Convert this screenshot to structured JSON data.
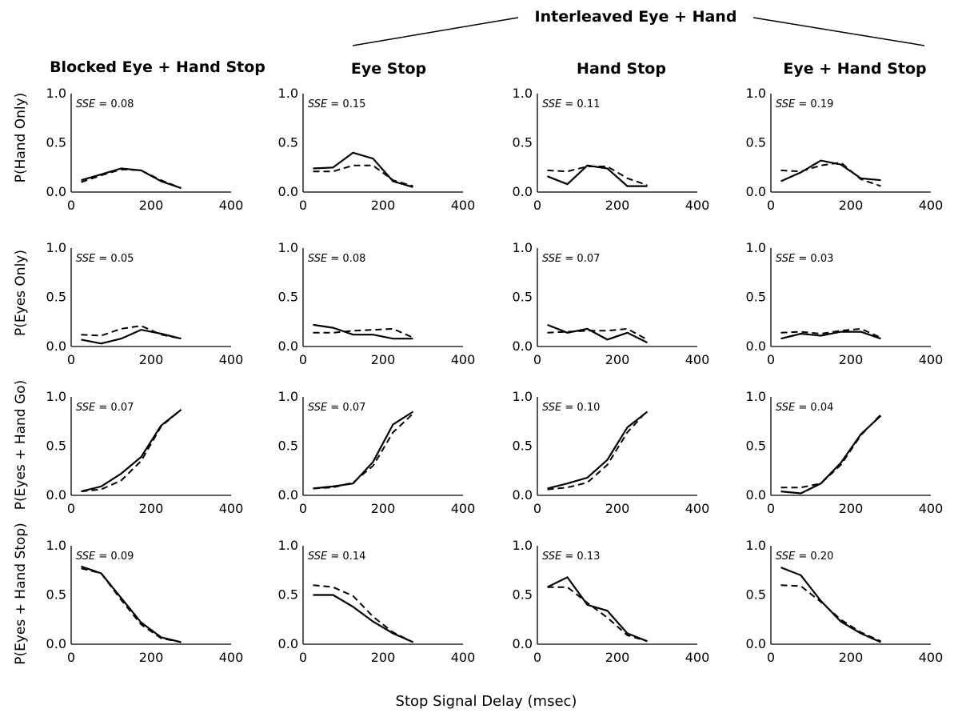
{
  "figure": {
    "group_header": "Interleaved Eye + Hand",
    "column_titles": [
      "Blocked Eye + Hand Stop",
      "Eye Stop",
      "Hand Stop",
      "Eye + Hand Stop"
    ],
    "row_labels": [
      "P(Hand Only)",
      "P(Eyes Only)",
      "P(Eyes + Hand Go)",
      "P(Eyes + Hand Stop)"
    ],
    "x_axis_label": "Stop Signal Delay (msec)"
  },
  "chart_data": {
    "type": "line",
    "layout": "4 rows x 4 columns small multiples",
    "x": [
      25,
      75,
      125,
      175,
      225,
      275
    ],
    "xlim": [
      0,
      400
    ],
    "ylim": [
      0,
      1
    ],
    "xticks": [
      "0",
      "200",
      "400"
    ],
    "yticks": [
      "0.0",
      "0.5",
      "1.0"
    ],
    "sse_prefix": "SSE",
    "series_styles": {
      "observed": "solid",
      "model": "dashed"
    },
    "panels": [
      {
        "row": 0,
        "col": 0,
        "sse": "0.08",
        "solid": [
          0.12,
          0.18,
          0.24,
          0.22,
          0.11,
          0.04
        ],
        "dashed": [
          0.1,
          0.17,
          0.23,
          0.22,
          0.12,
          0.04
        ]
      },
      {
        "row": 0,
        "col": 1,
        "sse": "0.15",
        "solid": [
          0.24,
          0.25,
          0.4,
          0.34,
          0.11,
          0.05
        ],
        "dashed": [
          0.21,
          0.21,
          0.27,
          0.27,
          0.12,
          0.06
        ]
      },
      {
        "row": 0,
        "col": 2,
        "sse": "0.11",
        "solid": [
          0.16,
          0.08,
          0.27,
          0.24,
          0.06,
          0.06
        ],
        "dashed": [
          0.22,
          0.21,
          0.26,
          0.26,
          0.14,
          0.07
        ]
      },
      {
        "row": 0,
        "col": 3,
        "sse": "0.19",
        "solid": [
          0.11,
          0.2,
          0.32,
          0.28,
          0.14,
          0.12
        ],
        "dashed": [
          0.22,
          0.21,
          0.27,
          0.3,
          0.13,
          0.06
        ]
      },
      {
        "row": 1,
        "col": 0,
        "sse": "0.05",
        "solid": [
          0.07,
          0.03,
          0.08,
          0.17,
          0.13,
          0.08
        ],
        "dashed": [
          0.12,
          0.11,
          0.18,
          0.21,
          0.12,
          0.08
        ]
      },
      {
        "row": 1,
        "col": 1,
        "sse": "0.08",
        "solid": [
          0.22,
          0.19,
          0.12,
          0.12,
          0.08,
          0.08
        ],
        "dashed": [
          0.14,
          0.14,
          0.16,
          0.17,
          0.18,
          0.09
        ]
      },
      {
        "row": 1,
        "col": 2,
        "sse": "0.07",
        "solid": [
          0.22,
          0.14,
          0.18,
          0.07,
          0.14,
          0.04
        ],
        "dashed": [
          0.14,
          0.15,
          0.16,
          0.16,
          0.18,
          0.07
        ]
      },
      {
        "row": 1,
        "col": 3,
        "sse": "0.03",
        "solid": [
          0.08,
          0.13,
          0.11,
          0.15,
          0.15,
          0.08
        ],
        "dashed": [
          0.14,
          0.15,
          0.13,
          0.16,
          0.18,
          0.09
        ]
      },
      {
        "row": 2,
        "col": 0,
        "sse": "0.07",
        "solid": [
          0.04,
          0.09,
          0.22,
          0.39,
          0.71,
          0.87
        ],
        "dashed": [
          0.04,
          0.06,
          0.15,
          0.35,
          0.7,
          0.87
        ]
      },
      {
        "row": 2,
        "col": 1,
        "sse": "0.07",
        "solid": [
          0.07,
          0.09,
          0.12,
          0.34,
          0.72,
          0.85
        ],
        "dashed": [
          0.07,
          0.08,
          0.13,
          0.3,
          0.64,
          0.83
        ]
      },
      {
        "row": 2,
        "col": 2,
        "sse": "0.10",
        "solid": [
          0.07,
          0.12,
          0.18,
          0.36,
          0.69,
          0.85
        ],
        "dashed": [
          0.06,
          0.08,
          0.13,
          0.31,
          0.64,
          0.86
        ]
      },
      {
        "row": 2,
        "col": 3,
        "sse": "0.04",
        "solid": [
          0.04,
          0.02,
          0.12,
          0.33,
          0.62,
          0.81
        ],
        "dashed": [
          0.08,
          0.08,
          0.12,
          0.31,
          0.61,
          0.82
        ]
      },
      {
        "row": 3,
        "col": 0,
        "sse": "0.09",
        "solid": [
          0.79,
          0.72,
          0.47,
          0.22,
          0.07,
          0.02
        ],
        "dashed": [
          0.77,
          0.72,
          0.45,
          0.2,
          0.06,
          0.02
        ]
      },
      {
        "row": 3,
        "col": 1,
        "sse": "0.14",
        "solid": [
          0.5,
          0.5,
          0.38,
          0.23,
          0.11,
          0.02
        ],
        "dashed": [
          0.6,
          0.58,
          0.49,
          0.28,
          0.12,
          0.02
        ]
      },
      {
        "row": 3,
        "col": 2,
        "sse": "0.13",
        "solid": [
          0.58,
          0.68,
          0.4,
          0.34,
          0.11,
          0.03
        ],
        "dashed": [
          0.58,
          0.58,
          0.42,
          0.27,
          0.09,
          0.03
        ]
      },
      {
        "row": 3,
        "col": 3,
        "sse": "0.20",
        "solid": [
          0.78,
          0.7,
          0.44,
          0.23,
          0.11,
          0.02
        ],
        "dashed": [
          0.6,
          0.59,
          0.43,
          0.25,
          0.12,
          0.03
        ]
      }
    ]
  }
}
